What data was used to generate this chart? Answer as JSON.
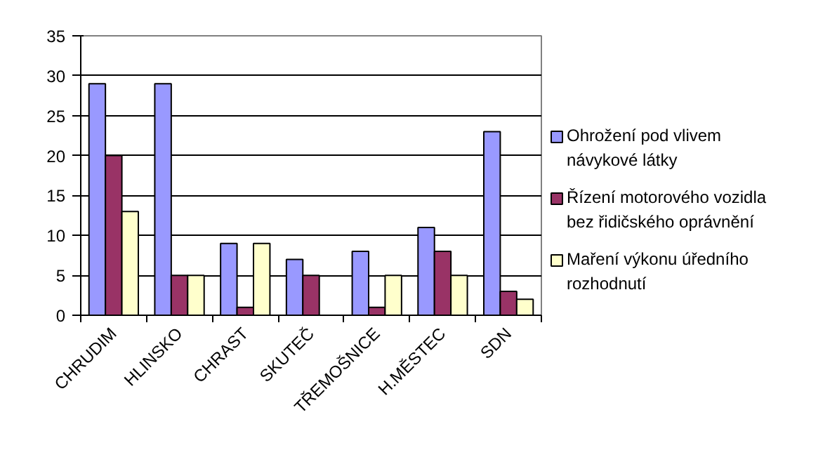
{
  "chart_data": {
    "type": "bar",
    "categories": [
      "CHRUDIM",
      "HLINSKO",
      "CHRAST",
      "SKUTEČ",
      "TŘEMOŠNICE",
      "H.MĚSTEC",
      "SDN"
    ],
    "series": [
      {
        "name": "Ohrožení pod vlivem návykové látky",
        "color": "#9999ff",
        "values": [
          29,
          29,
          9,
          7,
          8,
          11,
          23
        ]
      },
      {
        "name": "Řízení motorového vozidla bez řidičského oprávnění",
        "color": "#993366",
        "values": [
          20,
          5,
          1,
          5,
          1,
          8,
          3
        ]
      },
      {
        "name": "Maření výkonu úředního rozhodnutí",
        "color": "#ffffcc",
        "values": [
          13,
          5,
          9,
          0,
          5,
          5,
          2
        ]
      }
    ],
    "ylim": [
      0,
      35
    ],
    "yticks": [
      0,
      5,
      10,
      15,
      20,
      25,
      30,
      35
    ],
    "grid": "y",
    "legend": "right"
  }
}
